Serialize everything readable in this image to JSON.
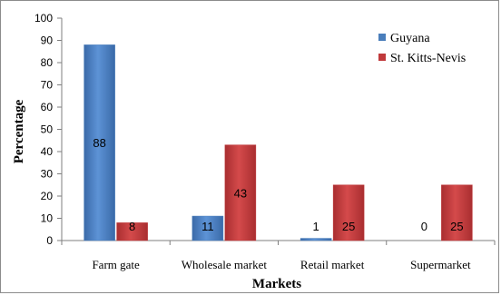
{
  "chart_data": {
    "type": "bar",
    "xlabel": "Markets",
    "ylabel": "Percentage",
    "ylim": [
      0,
      100
    ],
    "yticks": [
      0,
      10,
      20,
      30,
      40,
      50,
      60,
      70,
      80,
      90,
      100
    ],
    "grid": false,
    "legend_position": "top-right",
    "categories": [
      "Farm gate",
      "Wholesale market",
      "Retail market",
      "Supermarket"
    ],
    "series": [
      {
        "name": "Guyana",
        "color": "#4a7ebb",
        "values": [
          88,
          11,
          1,
          0
        ],
        "labels": [
          "88",
          "11",
          "1",
          "0"
        ]
      },
      {
        "name": "St. Kitts-Nevis",
        "color": "#c0393b",
        "values": [
          8,
          43,
          25,
          25
        ],
        "labels": [
          "8",
          "43",
          "25",
          "25"
        ]
      }
    ]
  }
}
